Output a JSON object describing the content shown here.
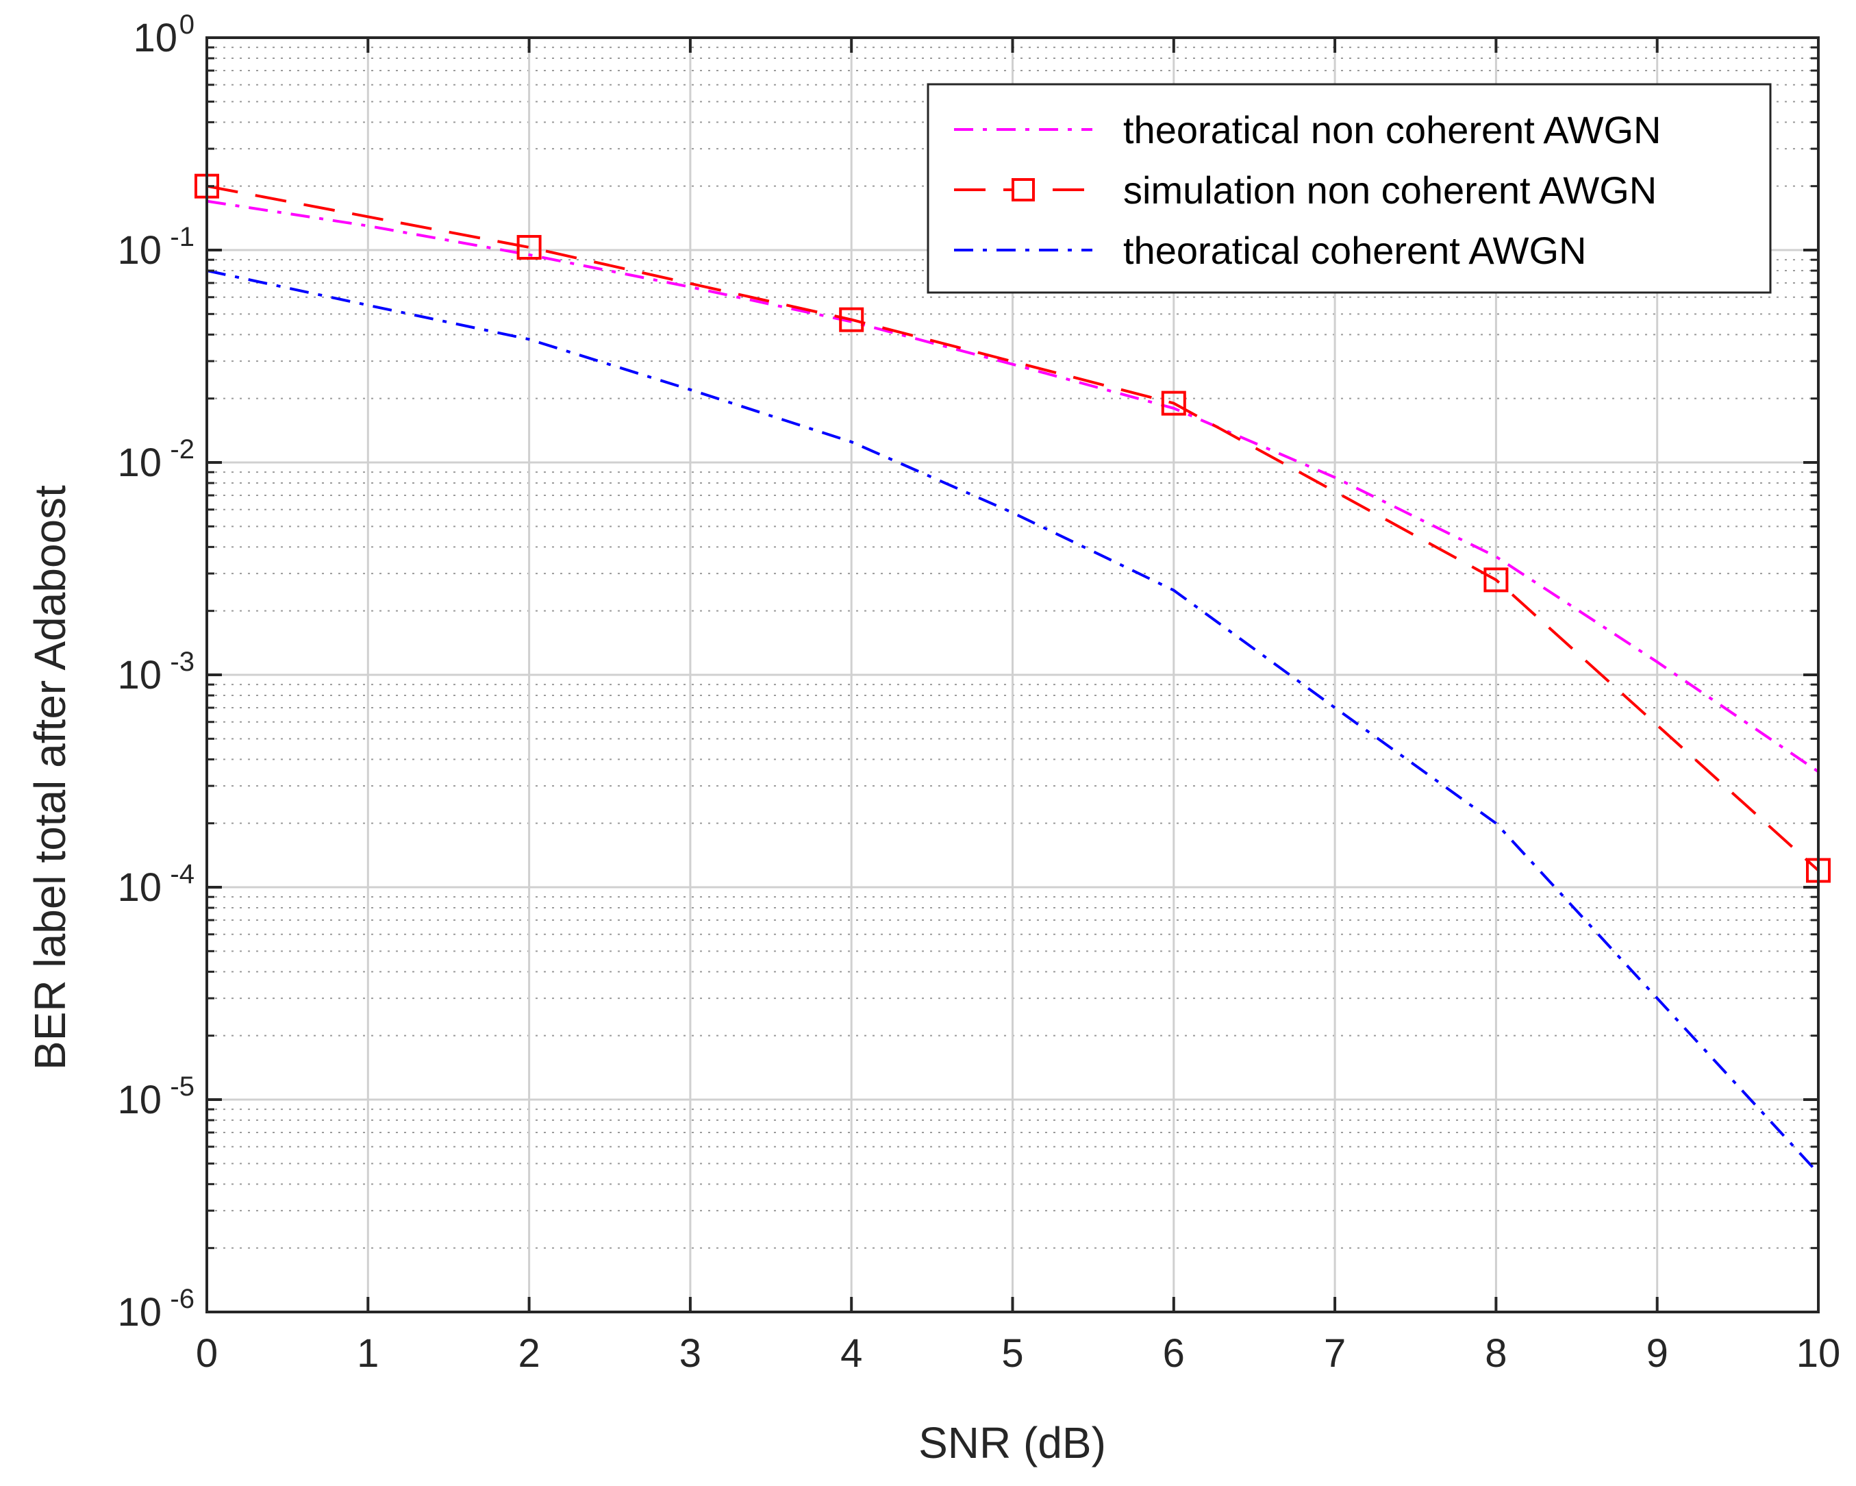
{
  "chart_data": {
    "type": "line",
    "title": "",
    "xlabel": "SNR (dB)",
    "ylabel": "BER label total after Adaboost",
    "xlim": [
      0,
      10
    ],
    "ylim": [
      1e-06,
      1
    ],
    "yscale": "log",
    "grid": true,
    "x_ticks": [
      "0",
      "1",
      "2",
      "3",
      "4",
      "5",
      "6",
      "7",
      "8",
      "9",
      "10"
    ],
    "y_ticks": [
      {
        "base": "10",
        "exp": "0",
        "value": 1
      },
      {
        "base": "10",
        "exp": "-1",
        "value": 0.1
      },
      {
        "base": "10",
        "exp": "-2",
        "value": 0.01
      },
      {
        "base": "10",
        "exp": "-3",
        "value": 0.001
      },
      {
        "base": "10",
        "exp": "-4",
        "value": 0.0001
      },
      {
        "base": "10",
        "exp": "-5",
        "value": 1e-05
      },
      {
        "base": "10",
        "exp": "-6",
        "value": 1e-06
      }
    ],
    "legend_position": "top-right",
    "series": [
      {
        "name": "theoratical non coherent AWGN",
        "color": "#ff00ff",
        "style": "dashdot",
        "marker": "none",
        "x": [
          0,
          1,
          2,
          3,
          4,
          5,
          6,
          7,
          8,
          9,
          10
        ],
        "y": [
          0.17,
          0.13,
          0.095,
          0.067,
          0.046,
          0.029,
          0.018,
          0.0085,
          0.0036,
          0.00115,
          0.00035
        ]
      },
      {
        "name": "simulation non coherent AWGN",
        "color": "#ff0000",
        "style": "dashed",
        "marker": "square",
        "x": [
          0,
          2,
          4,
          6,
          8,
          10
        ],
        "y": [
          0.2,
          0.103,
          0.047,
          0.019,
          0.0028,
          0.00012
        ]
      },
      {
        "name": "theoratical coherent AWGN",
        "color": "#0000ff",
        "style": "dashdot",
        "marker": "none",
        "x": [
          0,
          1,
          2,
          3,
          4,
          5,
          6,
          7,
          8,
          9,
          10
        ],
        "y": [
          0.08,
          0.055,
          0.038,
          0.022,
          0.0125,
          0.0058,
          0.0025,
          0.0007,
          0.0002,
          3e-05,
          4.5e-06
        ]
      }
    ]
  }
}
